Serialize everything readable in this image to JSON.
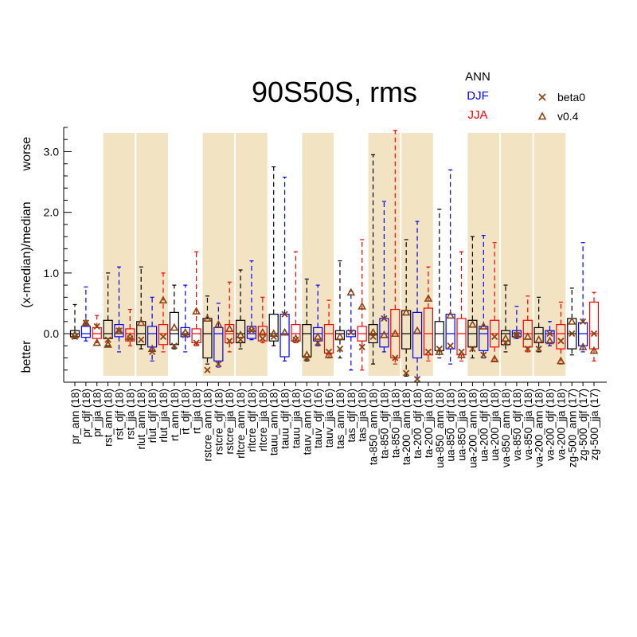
{
  "chart_data": {
    "type": "boxplot",
    "title": "90S50S, rms",
    "ylabel_parts": [
      "worse",
      "(x-median)/median",
      "better"
    ],
    "ylim": [
      -0.8,
      3.4
    ],
    "yticks": [
      0.0,
      1.0,
      2.0,
      3.0
    ],
    "ytick_labels": [
      "0.0",
      "1.0",
      "2.0",
      "3.0"
    ],
    "season_legend": [
      {
        "label": "ANN",
        "color": "#000000"
      },
      {
        "label": "DJF",
        "color": "#0000ff"
      },
      {
        "label": "JJA",
        "color": "#ff0000"
      }
    ],
    "marker_legend": [
      {
        "label": "beta0",
        "marker": "x",
        "color": "#8b4513"
      },
      {
        "label": "v0.4",
        "marker": "triangle",
        "color": "#8b4513"
      }
    ],
    "shading_color": "#f2e3c2",
    "shaded_groups": [
      [
        3,
        5
      ],
      [
        6,
        8
      ],
      [
        12,
        14
      ],
      [
        15,
        17
      ],
      [
        21,
        23
      ],
      [
        27,
        29
      ],
      [
        30,
        32
      ],
      [
        36,
        38
      ],
      [
        39,
        41
      ],
      [
        42,
        44
      ]
    ],
    "season_colors": {
      "ANN": "#000000",
      "DJF": "#0000ff",
      "JJA": "#ff0000"
    },
    "categories": [
      {
        "label": "pr_ann (18)",
        "season": "ANN",
        "wlo": -0.08,
        "q1": -0.05,
        "med": 0.0,
        "q3": 0.05,
        "whi": 0.48,
        "beta0": -0.05,
        "v04": -0.02
      },
      {
        "label": "pr_djf (18)",
        "season": "DJF",
        "wlo": -0.12,
        "q1": -0.06,
        "med": 0.0,
        "q3": 0.12,
        "whi": 0.77,
        "beta0": 0.18,
        "v04": 0.18
      },
      {
        "label": "pr_jja (18)",
        "season": "JJA",
        "wlo": -0.15,
        "q1": -0.08,
        "med": 0.0,
        "q3": 0.1,
        "whi": 0.3,
        "beta0": 0.12,
        "v04": -0.15
      },
      {
        "label": "rst_ann (18)",
        "season": "ANN",
        "wlo": -0.2,
        "q1": -0.08,
        "med": 0.0,
        "q3": 0.22,
        "whi": 1.0,
        "beta0": -0.1,
        "v04": -0.18
      },
      {
        "label": "rst_djf (18)",
        "season": "DJF",
        "wlo": -0.3,
        "q1": -0.05,
        "med": 0.0,
        "q3": 0.15,
        "whi": 1.1,
        "beta0": 0.05,
        "v04": 0.05
      },
      {
        "label": "rst_jja (18)",
        "season": "JJA",
        "wlo": -0.2,
        "q1": -0.12,
        "med": 0.0,
        "q3": 0.08,
        "whi": 0.4,
        "beta0": -0.08,
        "v04": -0.05
      },
      {
        "label": "rlut_ann (18)",
        "season": "ANN",
        "wlo": -0.25,
        "q1": -0.18,
        "med": 0.0,
        "q3": 0.2,
        "whi": 1.1,
        "beta0": -0.1,
        "v04": 0.18
      },
      {
        "label": "rlut_djf (18)",
        "season": "DJF",
        "wlo": -0.45,
        "q1": -0.22,
        "med": 0.0,
        "q3": 0.12,
        "whi": 0.6,
        "beta0": -0.3,
        "v04": -0.25
      },
      {
        "label": "rlut_jja (18)",
        "season": "JJA",
        "wlo": -0.3,
        "q1": -0.18,
        "med": 0.0,
        "q3": 0.15,
        "whi": 1.0,
        "beta0": -0.05,
        "v04": 0.55
      },
      {
        "label": "rt_ann (18)",
        "season": "ANN",
        "wlo": -0.25,
        "q1": -0.18,
        "med": 0.0,
        "q3": 0.35,
        "whi": 0.8,
        "beta0": -0.2,
        "v04": 0.1
      },
      {
        "label": "rt_djf (18)",
        "season": "DJF",
        "wlo": -0.3,
        "q1": -0.05,
        "med": 0.0,
        "q3": 0.1,
        "whi": 0.8,
        "beta0": -0.02,
        "v04": 0.02
      },
      {
        "label": "rt_jja (18)",
        "season": "JJA",
        "wlo": -0.2,
        "q1": -0.15,
        "med": 0.0,
        "q3": 0.08,
        "whi": 1.35,
        "beta0": -0.15,
        "v04": 0.37
      },
      {
        "label": "rstcre_ann (18)",
        "season": "ANN",
        "wlo": -0.5,
        "q1": -0.4,
        "med": 0.0,
        "q3": 0.25,
        "whi": 0.62,
        "beta0": -0.6,
        "v04": 0.25
      },
      {
        "label": "rstcre_djf (18)",
        "season": "DJF",
        "wlo": -0.55,
        "q1": -0.45,
        "med": 0.0,
        "q3": 0.1,
        "whi": 0.5,
        "beta0": -0.5,
        "v04": 0.15
      },
      {
        "label": "rstcre_jja (18)",
        "season": "JJA",
        "wlo": -0.3,
        "q1": -0.15,
        "med": 0.0,
        "q3": 0.15,
        "whi": 0.85,
        "beta0": -0.12,
        "v04": 0.08
      },
      {
        "label": "rltcre_ann (18)",
        "season": "ANN",
        "wlo": -0.25,
        "q1": -0.15,
        "med": 0.0,
        "q3": 0.22,
        "whi": 1.05,
        "beta0": -0.1,
        "v04": -0.02
      },
      {
        "label": "rltcre_djf (18)",
        "season": "DJF",
        "wlo": -0.1,
        "q1": -0.08,
        "med": 0.0,
        "q3": 0.12,
        "whi": 1.2,
        "beta0": 0.05,
        "v04": 0.08
      },
      {
        "label": "rltcre_jja (18)",
        "season": "JJA",
        "wlo": -0.15,
        "q1": -0.12,
        "med": 0.0,
        "q3": 0.12,
        "whi": 0.6,
        "beta0": -0.08,
        "v04": 0.02
      },
      {
        "label": "tauu_ann (18)",
        "season": "ANN",
        "wlo": -0.2,
        "q1": -0.12,
        "med": 0.0,
        "q3": 0.32,
        "whi": 2.75,
        "beta0": -0.05,
        "v04": 0.0
      },
      {
        "label": "tauu_djf (18)",
        "season": "DJF",
        "wlo": -0.45,
        "q1": -0.38,
        "med": 0.0,
        "q3": 0.32,
        "whi": 2.58,
        "beta0": 0.32,
        "v04": 0.02
      },
      {
        "label": "tauu_jja (18)",
        "season": "JJA",
        "wlo": -0.15,
        "q1": -0.12,
        "med": 0.0,
        "q3": 0.15,
        "whi": 1.35,
        "beta0": -0.1,
        "v04": -0.08
      },
      {
        "label": "tauv_ann (16)",
        "season": "ANN",
        "wlo": -0.45,
        "q1": -0.38,
        "med": 0.0,
        "q3": 0.15,
        "whi": 0.9,
        "beta0": -0.4,
        "v04": -0.35
      },
      {
        "label": "tauv_djf (16)",
        "season": "DJF",
        "wlo": -0.2,
        "q1": -0.12,
        "med": 0.0,
        "q3": 0.1,
        "whi": 0.8,
        "beta0": -0.15,
        "v04": -0.05
      },
      {
        "label": "tauv_jja (16)",
        "season": "JJA",
        "wlo": -0.4,
        "q1": -0.32,
        "med": 0.0,
        "q3": 0.15,
        "whi": 0.55,
        "beta0": -0.3,
        "v04": -0.35
      },
      {
        "label": "tas_ann (18)",
        "season": "ANN",
        "wlo": -0.4,
        "q1": -0.1,
        "med": 0.0,
        "q3": 0.05,
        "whi": 1.2,
        "beta0": -0.25,
        "v04": -0.05
      },
      {
        "label": "tas_djf (18)",
        "season": "DJF",
        "wlo": -0.6,
        "q1": -0.05,
        "med": 0.0,
        "q3": 0.05,
        "whi": 0.7,
        "beta0": 0.02,
        "v04": 0.68
      },
      {
        "label": "tas_jja (18)",
        "season": "JJA",
        "wlo": -0.6,
        "q1": -0.12,
        "med": 0.0,
        "q3": 0.12,
        "whi": 1.55,
        "beta0": -0.22,
        "v04": 0.45
      },
      {
        "label": "ta-850_ann (18)",
        "season": "ANN",
        "wlo": -0.5,
        "q1": -0.15,
        "med": 0.0,
        "q3": 0.15,
        "whi": 2.95,
        "beta0": -0.05,
        "v04": 0.02
      },
      {
        "label": "ta-850_djf (18)",
        "season": "DJF",
        "wlo": -0.3,
        "q1": -0.22,
        "med": 0.0,
        "q3": 0.25,
        "whi": 2.18,
        "beta0": 0.25,
        "v04": -0.02
      },
      {
        "label": "ta-850_jja (18)",
        "season": "JJA",
        "wlo": -0.5,
        "q1": -0.4,
        "med": 0.0,
        "q3": 0.4,
        "whi": 3.35,
        "beta0": -0.4,
        "v04": 0.0
      },
      {
        "label": "ta-200_ann (18)",
        "season": "ANN",
        "wlo": -0.7,
        "q1": -0.25,
        "med": 0.0,
        "q3": 0.38,
        "whi": 1.55,
        "beta0": -0.65,
        "v04": 0.35
      },
      {
        "label": "ta-200_djf (18)",
        "season": "DJF",
        "wlo": -0.8,
        "q1": -0.4,
        "med": 0.0,
        "q3": 0.35,
        "whi": 1.85,
        "beta0": -0.75,
        "v04": 0.05
      },
      {
        "label": "ta-200_jja (18)",
        "season": "JJA",
        "wlo": -0.45,
        "q1": -0.35,
        "med": 0.0,
        "q3": 0.42,
        "whi": 1.1,
        "beta0": -0.3,
        "v04": 0.58
      },
      {
        "label": "ua-850_ann (18)",
        "season": "ANN",
        "wlo": -0.4,
        "q1": -0.28,
        "med": 0.0,
        "q3": 0.2,
        "whi": 2.05,
        "beta0": -0.25,
        "v04": -0.3
      },
      {
        "label": "ua-850_djf (18)",
        "season": "DJF",
        "wlo": -0.5,
        "q1": -0.25,
        "med": 0.0,
        "q3": 0.32,
        "whi": 2.7,
        "beta0": -0.2,
        "v04": 0.3
      },
      {
        "label": "ua-850_jja (18)",
        "season": "JJA",
        "wlo": -0.45,
        "q1": -0.35,
        "med": 0.0,
        "q3": 0.25,
        "whi": 1.35,
        "beta0": -0.3,
        "v04": -0.35
      },
      {
        "label": "ua-200_ann (18)",
        "season": "ANN",
        "wlo": -0.4,
        "q1": -0.22,
        "med": 0.0,
        "q3": 0.22,
        "whi": 1.6,
        "beta0": -0.25,
        "v04": 0.15
      },
      {
        "label": "ua-200_djf (18)",
        "season": "DJF",
        "wlo": -0.4,
        "q1": -0.28,
        "med": 0.0,
        "q3": 0.12,
        "whi": 1.62,
        "beta0": -0.35,
        "v04": 0.12
      },
      {
        "label": "ua-200_jja (18)",
        "season": "JJA",
        "wlo": -0.45,
        "q1": -0.22,
        "med": 0.0,
        "q3": 0.22,
        "whi": 1.5,
        "beta0": -0.05,
        "v04": -0.42
      },
      {
        "label": "va-850_ann (18)",
        "season": "ANN",
        "wlo": -0.3,
        "q1": -0.18,
        "med": 0.0,
        "q3": 0.05,
        "whi": 0.8,
        "beta0": -0.15,
        "v04": -0.08
      },
      {
        "label": "va-850_djf (18)",
        "season": "DJF",
        "wlo": -0.08,
        "q1": -0.05,
        "med": 0.0,
        "q3": 0.05,
        "whi": 0.45,
        "beta0": -0.02,
        "v04": -0.02
      },
      {
        "label": "va-850_jja (18)",
        "season": "JJA",
        "wlo": -0.3,
        "q1": -0.22,
        "med": 0.0,
        "q3": 0.22,
        "whi": 0.62,
        "beta0": -0.25,
        "v04": -0.05
      },
      {
        "label": "va-200_ann (18)",
        "season": "ANN",
        "wlo": -0.3,
        "q1": -0.15,
        "med": 0.0,
        "q3": 0.1,
        "whi": 0.6,
        "beta0": -0.25,
        "v04": -0.1
      },
      {
        "label": "va-200_djf (18)",
        "season": "DJF",
        "wlo": -0.2,
        "q1": -0.15,
        "med": 0.0,
        "q3": 0.05,
        "whi": 0.2,
        "beta0": 0.0,
        "v04": -0.12
      },
      {
        "label": "va-200_jja (18)",
        "season": "JJA",
        "wlo": -0.5,
        "q1": -0.25,
        "med": 0.0,
        "q3": 0.15,
        "whi": 0.52,
        "beta0": -0.12,
        "v04": -0.45
      },
      {
        "label": "zg-500_ann (17)",
        "season": "ANN",
        "wlo": -0.35,
        "q1": -0.25,
        "med": 0.0,
        "q3": 0.25,
        "whi": 0.75,
        "beta0": 0.0,
        "v04": 0.2
      },
      {
        "label": "zg-500_djf (17)",
        "season": "DJF",
        "wlo": -0.3,
        "q1": -0.2,
        "med": 0.0,
        "q3": 0.18,
        "whi": 1.5,
        "beta0": 0.2,
        "v04": -0.22
      },
      {
        "label": "zg-500_jja (17)",
        "season": "JJA",
        "wlo": -0.45,
        "q1": -0.25,
        "med": 0.0,
        "q3": 0.52,
        "whi": 0.68,
        "beta0": 0.0,
        "v04": -0.28
      }
    ]
  }
}
